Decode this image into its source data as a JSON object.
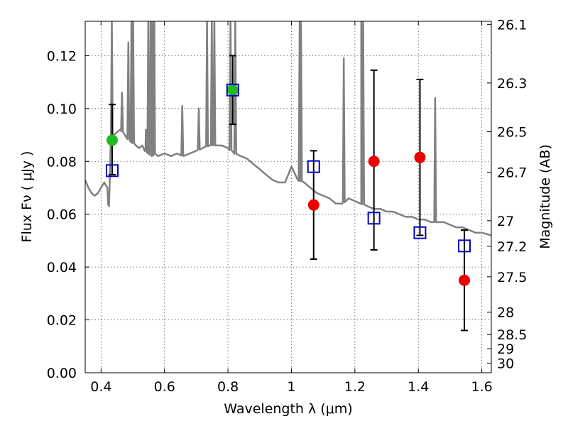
{
  "chart_data": {
    "type": "scatter",
    "xlabel": "Wavelength  λ (μm)",
    "ylabel": "Flux  Fν  ( μJy )",
    "y2label": "Magnitude (AB)",
    "xlim": [
      0.35,
      1.63
    ],
    "ylim": [
      0.0,
      0.133
    ],
    "grid": true,
    "x_ticks": [
      0.4,
      0.6,
      0.8,
      1.0,
      1.2,
      1.4,
      1.6
    ],
    "x_tick_labels": [
      "0.4",
      "0.6",
      "0.8",
      "1",
      "1.2",
      "1.4",
      "1.6"
    ],
    "y_ticks": [
      0.0,
      0.02,
      0.04,
      0.06,
      0.08,
      0.1,
      0.12
    ],
    "y_tick_labels": [
      "0.00",
      "0.02",
      "0.04",
      "0.06",
      "0.08",
      "0.10",
      "0.12"
    ],
    "y2_ticks": [
      26.1,
      26.3,
      26.5,
      26.7,
      27,
      27.2,
      27.5,
      28,
      28.5,
      29,
      30
    ],
    "y2_tick_labels": [
      "26.1",
      "26.3",
      "26.5",
      "26.7",
      "27",
      "27.2",
      "27.5",
      "28",
      "28.5",
      "29",
      "30"
    ],
    "colors": {
      "model_spectrum": "#808080",
      "model_photometry": "#0000cc",
      "observed_red": "#ee0000",
      "observed_green": "#22bb22",
      "errorbar": "#000000",
      "grid": "#555555"
    },
    "spectrum": {
      "x": [
        0.35,
        0.36,
        0.37,
        0.38,
        0.39,
        0.4,
        0.41,
        0.42,
        0.422,
        0.425,
        0.428,
        0.43,
        0.44,
        0.45,
        0.46,
        0.47,
        0.48,
        0.49,
        0.5,
        0.51,
        0.52,
        0.53,
        0.54,
        0.55,
        0.56,
        0.57,
        0.58,
        0.6,
        0.62,
        0.64,
        0.66,
        0.68,
        0.7,
        0.72,
        0.74,
        0.76,
        0.78,
        0.8,
        0.82,
        0.84,
        0.86,
        0.88,
        0.9,
        0.92,
        0.94,
        0.96,
        0.98,
        1.0,
        1.02,
        1.04,
        1.06,
        1.08,
        1.1,
        1.12,
        1.14,
        1.16,
        1.18,
        1.2,
        1.22,
        1.24,
        1.26,
        1.28,
        1.3,
        1.32,
        1.34,
        1.36,
        1.38,
        1.4,
        1.42,
        1.44,
        1.46,
        1.48,
        1.5,
        1.52,
        1.54,
        1.56,
        1.58,
        1.6,
        1.63
      ],
      "y": [
        0.073,
        0.07,
        0.068,
        0.067,
        0.068,
        0.07,
        0.072,
        0.07,
        0.064,
        0.063,
        0.075,
        0.086,
        0.09,
        0.091,
        0.092,
        0.091,
        0.089,
        0.088,
        0.087,
        0.086,
        0.085,
        0.086,
        0.084,
        0.083,
        0.082,
        0.083,
        0.082,
        0.083,
        0.082,
        0.083,
        0.082,
        0.083,
        0.084,
        0.085,
        0.086,
        0.086,
        0.086,
        0.085,
        0.083,
        0.082,
        0.081,
        0.079,
        0.077,
        0.075,
        0.073,
        0.072,
        0.072,
        0.078,
        0.073,
        0.072,
        0.07,
        0.068,
        0.067,
        0.066,
        0.064,
        0.064,
        0.066,
        0.065,
        0.064,
        0.063,
        0.062,
        0.062,
        0.061,
        0.061,
        0.06,
        0.059,
        0.059,
        0.058,
        0.058,
        0.057,
        0.057,
        0.057,
        0.056,
        0.055,
        0.055,
        0.054,
        0.053,
        0.053,
        0.052
      ]
    },
    "emission_lines": [
      {
        "x": 0.434,
        "peak": 0.134
      },
      {
        "x": 0.466,
        "peak": 0.106
      },
      {
        "x": 0.486,
        "peak": 0.125
      },
      {
        "x": 0.496,
        "peak": 0.134
      },
      {
        "x": 0.501,
        "peak": 0.134
      },
      {
        "x": 0.541,
        "peak": 0.092
      },
      {
        "x": 0.549,
        "peak": 0.134
      },
      {
        "x": 0.556,
        "peak": 0.134
      },
      {
        "x": 0.562,
        "peak": 0.134
      },
      {
        "x": 0.568,
        "peak": 0.134
      },
      {
        "x": 0.656,
        "peak": 0.101
      },
      {
        "x": 0.708,
        "peak": 0.1
      },
      {
        "x": 0.734,
        "peak": 0.134
      },
      {
        "x": 0.749,
        "peak": 0.134
      },
      {
        "x": 0.757,
        "peak": 0.134
      },
      {
        "x": 0.808,
        "peak": 0.134
      },
      {
        "x": 0.823,
        "peak": 0.134
      },
      {
        "x": 1.026,
        "peak": 0.134
      },
      {
        "x": 1.03,
        "peak": 0.134
      },
      {
        "x": 1.165,
        "peak": 0.119
      },
      {
        "x": 1.22,
        "peak": 0.134
      },
      {
        "x": 1.226,
        "peak": 0.134
      },
      {
        "x": 1.453,
        "peak": 0.104
      }
    ],
    "series": [
      {
        "marker": "open-square",
        "x": [
          0.435,
          0.815,
          1.07,
          1.26,
          1.405,
          1.545
        ],
        "y": [
          0.0765,
          0.107,
          0.078,
          0.0585,
          0.053,
          0.048
        ]
      },
      {
        "marker": "filled-circle",
        "color": "red",
        "x": [
          1.07,
          1.26,
          1.405,
          1.545
        ],
        "y": [
          0.0635,
          0.08,
          0.0815,
          0.035
        ],
        "yerr_low": [
          0.043,
          0.0465,
          0.052,
          0.016
        ],
        "yerr_high": [
          0.084,
          0.1145,
          0.111,
          0.054
        ]
      },
      {
        "marker": "filled-circle",
        "color": "green",
        "x": [
          0.435,
          0.815
        ],
        "y": [
          0.088,
          0.107
        ],
        "yerr_low": [
          0.075,
          0.094
        ],
        "yerr_high": [
          0.1015,
          0.12
        ]
      }
    ]
  }
}
